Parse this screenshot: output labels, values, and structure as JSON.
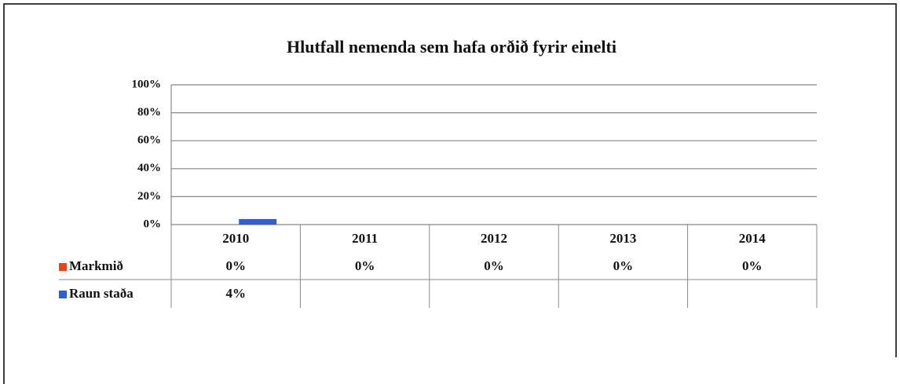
{
  "chart_data": {
    "type": "bar",
    "title": "Hlutfall nemenda sem hafa orðið fyrir einelti",
    "categories": [
      "2010",
      "2011",
      "2012",
      "2013",
      "2014"
    ],
    "series": [
      {
        "name": "Markmið",
        "color": "#e8461a",
        "values": [
          0,
          0,
          0,
          0,
          0
        ],
        "value_labels": [
          "0%",
          "0%",
          "0%",
          "0%",
          "0%"
        ]
      },
      {
        "name": "Raun staða",
        "color": "#2f5fd0",
        "values": [
          4,
          null,
          null,
          null,
          null
        ],
        "value_labels": [
          "4%",
          null,
          null,
          null,
          null
        ]
      }
    ],
    "ylim": [
      0,
      100
    ],
    "yticks": [
      {
        "value": 0,
        "label": "0%"
      },
      {
        "value": 20,
        "label": "20%"
      },
      {
        "value": 40,
        "label": "40%"
      },
      {
        "value": 60,
        "label": "60%"
      },
      {
        "value": 80,
        "label": "80%"
      },
      {
        "value": 100,
        "label": "100%"
      }
    ],
    "grid": true
  }
}
